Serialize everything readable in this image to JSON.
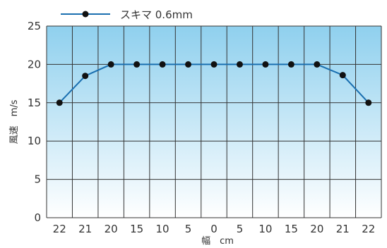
{
  "chart_data": {
    "type": "line",
    "title": "",
    "xlabel": "幅　cm",
    "ylabel": "風速　m/s",
    "categories": [
      "22",
      "21",
      "20",
      "15",
      "10",
      "5",
      "0",
      "5",
      "10",
      "15",
      "20",
      "21",
      "22"
    ],
    "series": [
      {
        "name": "スキマ  0.6mm",
        "values": [
          15,
          18.5,
          20,
          20,
          20,
          20,
          20,
          20,
          20,
          20,
          20,
          18.6,
          15
        ]
      }
    ],
    "ylim": [
      0,
      25
    ],
    "yticks": [
      "0",
      "5",
      "10",
      "15",
      "20",
      "25"
    ],
    "grid": true,
    "legend": "top-left",
    "colors": {
      "line": "#1a6fb0",
      "marker": "#111111",
      "grid": "#333333",
      "gradient_top": "#8fd0ee",
      "gradient_bottom": "#ffffff"
    }
  }
}
